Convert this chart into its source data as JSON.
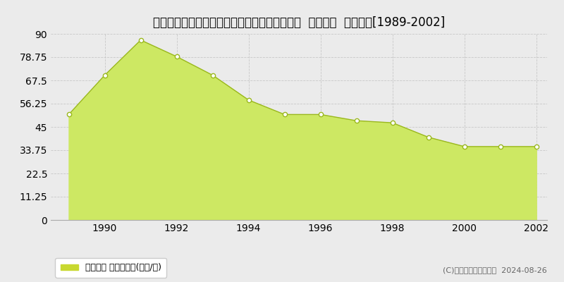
{
  "title": "北海道札幌市中央区北９条西１８丁目２番１外  地価公示  地価推移[1989-2002]",
  "years": [
    1989,
    1990,
    1991,
    1992,
    1993,
    1994,
    1995,
    1996,
    1997,
    1998,
    1999,
    2000,
    2001,
    2002
  ],
  "values": [
    51.0,
    70.0,
    87.0,
    79.0,
    70.0,
    58.0,
    51.0,
    51.0,
    48.0,
    47.0,
    40.0,
    35.5,
    35.5,
    35.5
  ],
  "ylim": [
    0,
    90
  ],
  "yticks": [
    0,
    11.25,
    22.5,
    33.75,
    45,
    56.25,
    67.5,
    78.75,
    90
  ],
  "xticks": [
    1990,
    1992,
    1994,
    1996,
    1998,
    2000,
    2002
  ],
  "fill_color": "#cde863",
  "line_color": "#9ab81e",
  "marker_facecolor": "#ffffff",
  "marker_edgecolor": "#9ab81e",
  "grid_color": "#c8c8c8",
  "plot_bg_color": "#ebebeb",
  "fig_bg_color": "#ebebeb",
  "legend_label": "地価公示 平均坪単価(万円/坪)",
  "legend_square_color": "#c8d830",
  "copyright_text": "(C)土地価格ドットコム  2024-08-26",
  "title_fontsize": 12,
  "tick_fontsize": 9,
  "legend_fontsize": 9,
  "copyright_fontsize": 8
}
